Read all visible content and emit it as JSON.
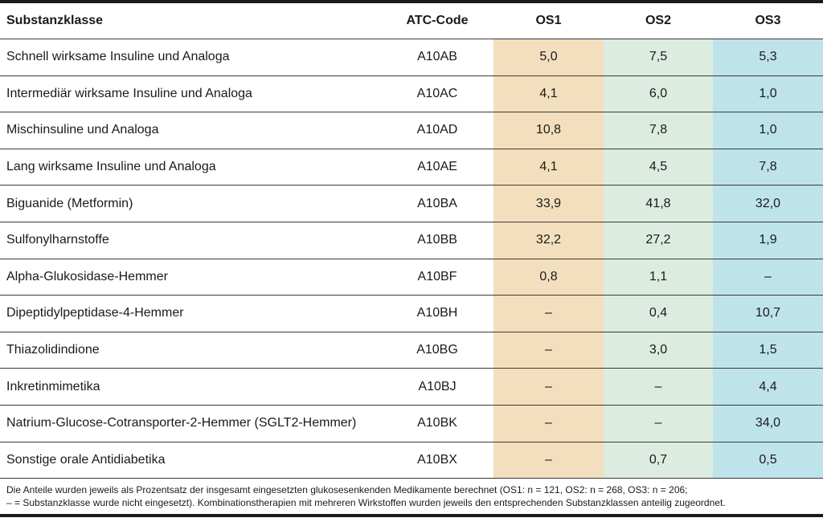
{
  "table": {
    "headers": [
      "Substanzklasse",
      "ATC-Code",
      "OS1",
      "OS2",
      "OS3"
    ],
    "rows": [
      {
        "name": "Schnell wirksame Insuline und Analoga",
        "atc": "A10AB",
        "os1": "5,0",
        "os2": "7,5",
        "os3": "5,3"
      },
      {
        "name": "Intermediär wirksame Insuline und Analoga",
        "atc": "A10AC",
        "os1": "4,1",
        "os2": "6,0",
        "os3": "1,0"
      },
      {
        "name": "Mischinsuline und Analoga",
        "atc": "A10AD",
        "os1": "10,8",
        "os2": "7,8",
        "os3": "1,0"
      },
      {
        "name": "Lang wirksame Insuline und Analoga",
        "atc": "A10AE",
        "os1": "4,1",
        "os2": "4,5",
        "os3": "7,8"
      },
      {
        "name": "Biguanide (Metformin)",
        "atc": "A10BA",
        "os1": "33,9",
        "os2": "41,8",
        "os3": "32,0"
      },
      {
        "name": "Sulfonylharnstoffe",
        "atc": "A10BB",
        "os1": "32,2",
        "os2": "27,2",
        "os3": "1,9"
      },
      {
        "name": "Alpha-Glukosidase-Hemmer",
        "atc": "A10BF",
        "os1": "0,8",
        "os2": "1,1",
        "os3": "–"
      },
      {
        "name": "Dipeptidylpeptidase-4-Hemmer",
        "atc": "A10BH",
        "os1": "–",
        "os2": "0,4",
        "os3": "10,7"
      },
      {
        "name": "Thiazolidindione",
        "atc": "A10BG",
        "os1": "–",
        "os2": "3,0",
        "os3": "1,5"
      },
      {
        "name": "Inkretinmimetika",
        "atc": "A10BJ",
        "os1": "–",
        "os2": "–",
        "os3": "4,4"
      },
      {
        "name": "Natrium-Glucose-Cotransporter-2-Hemmer (SGLT2-Hemmer)",
        "atc": "A10BK",
        "os1": "–",
        "os2": "–",
        "os3": "34,0"
      },
      {
        "name": "Sonstige orale Antidiabetika",
        "atc": "A10BX",
        "os1": "–",
        "os2": "0,7",
        "os3": "0,5"
      }
    ]
  },
  "footnote": {
    "line1": "Die Anteile wurden jeweils als Prozentsatz der insgesamt eingesetzten glukosesenkenden Medikamente berechnet (OS1: n = 121, OS2: n = 268, OS3: n = 206;",
    "line2": "– = Substanzklasse wurde nicht eingesetzt). Kombinationstherapien mit mehreren Wirkstoffen wurden jeweils den entsprechenden Substanzklassen anteilig zugeordnet."
  },
  "colors": {
    "os1": "#f3dfbd",
    "os2": "#dcece0",
    "os3": "#bfe3ea"
  }
}
